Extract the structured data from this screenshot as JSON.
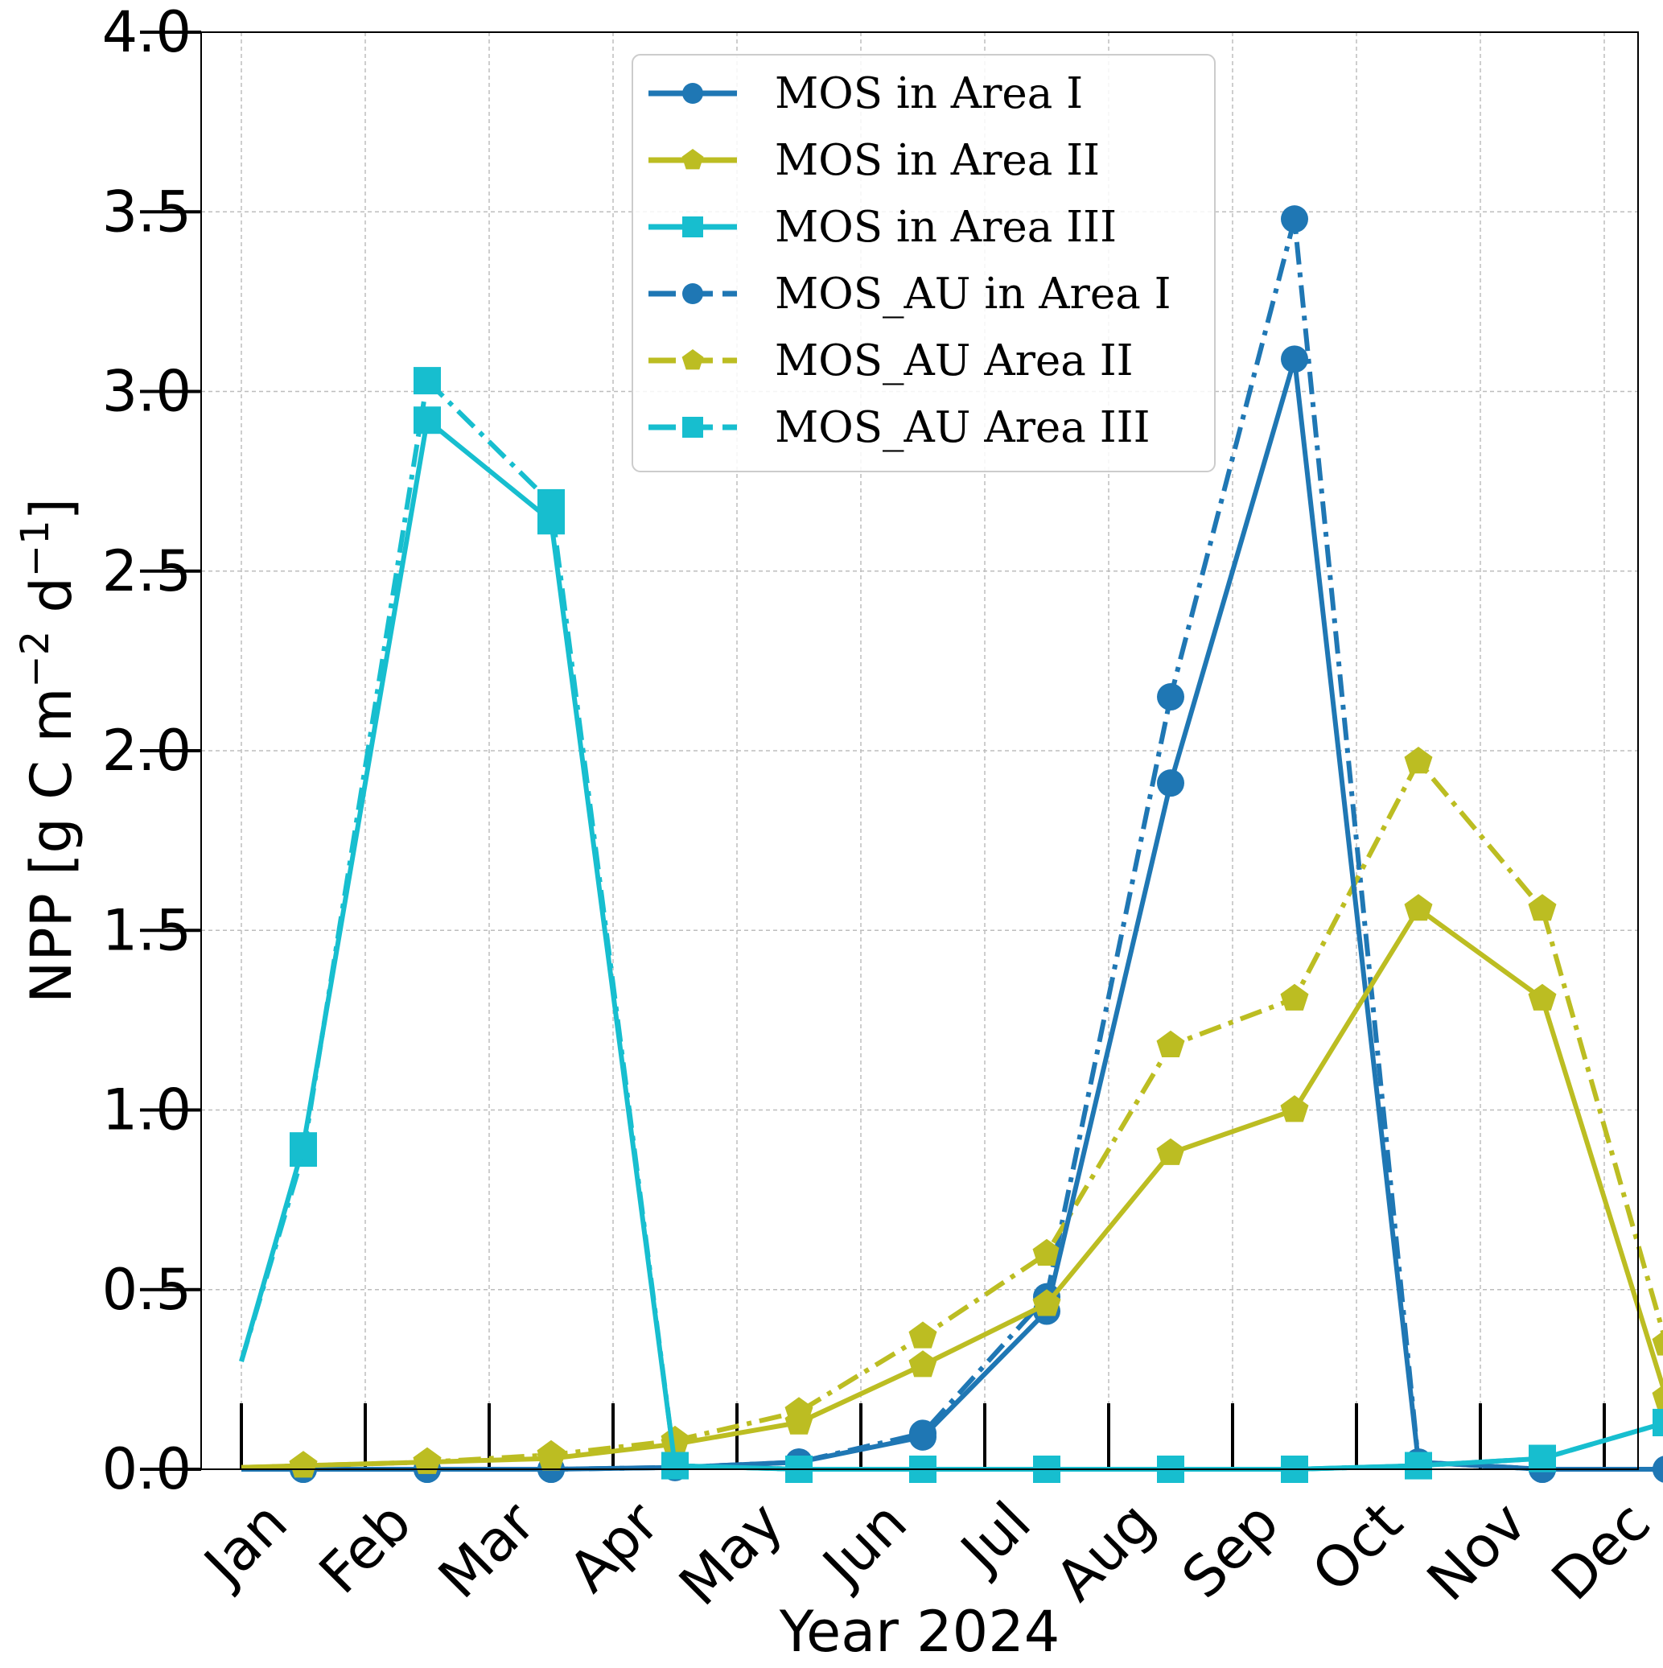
{
  "chart_data": {
    "type": "line",
    "xlabel": "Year 2024",
    "ylabel_main": "NPP [g C m",
    "ylabel_sup1": "−2",
    "ylabel_mid": " d",
    "ylabel_sup2": "−1",
    "ylabel_end": "]",
    "ylim": [
      0.0,
      4.0
    ],
    "yticks": [
      "0.0",
      "0.5",
      "1.0",
      "1.5",
      "2.0",
      "2.5",
      "3.0",
      "3.5",
      "4.0"
    ],
    "month_labels": [
      "Jan",
      "Feb",
      "Mar",
      "Apr",
      "May",
      "Jun",
      "Jul",
      "Aug",
      "Sep",
      "Oct",
      "Nov",
      "Dec"
    ],
    "grid": true,
    "legend_position": "top-center",
    "series": [
      {
        "name": "MOS in Area I",
        "color": "#1f77b4",
        "dash": "solid",
        "marker": "circle",
        "points": [
          [
            0.0,
            0.0
          ],
          [
            0.5,
            0.0
          ],
          [
            1.5,
            0.0
          ],
          [
            2.5,
            0.0
          ],
          [
            3.5,
            0.005
          ],
          [
            4.5,
            0.02
          ],
          [
            5.5,
            0.09
          ],
          [
            6.5,
            0.44
          ],
          [
            7.5,
            1.91
          ],
          [
            8.5,
            3.09
          ],
          [
            9.5,
            0.02
          ],
          [
            10.5,
            0.0
          ],
          [
            11.5,
            0.0
          ]
        ]
      },
      {
        "name": "MOS in Area II",
        "color": "#bcbd22",
        "dash": "solid",
        "marker": "pentagon",
        "points": [
          [
            0.0,
            0.005
          ],
          [
            0.5,
            0.01
          ],
          [
            1.5,
            0.02
          ],
          [
            2.5,
            0.03
          ],
          [
            3.5,
            0.07
          ],
          [
            4.5,
            0.13
          ],
          [
            5.5,
            0.29
          ],
          [
            6.5,
            0.46
          ],
          [
            7.5,
            0.88
          ],
          [
            8.5,
            1.0
          ],
          [
            9.5,
            1.56
          ],
          [
            10.5,
            1.31
          ],
          [
            11.5,
            0.2
          ]
        ]
      },
      {
        "name": "MOS in Area III",
        "color": "#17becf",
        "dash": "solid",
        "marker": "square",
        "points": [
          [
            0.0,
            0.3
          ],
          [
            0.5,
            0.9
          ],
          [
            1.5,
            2.92
          ],
          [
            2.5,
            2.64
          ],
          [
            3.5,
            0.01
          ],
          [
            4.5,
            0.0
          ],
          [
            5.5,
            0.0
          ],
          [
            6.5,
            0.0
          ],
          [
            7.5,
            0.0
          ],
          [
            8.5,
            0.0
          ],
          [
            9.5,
            0.01
          ],
          [
            10.5,
            0.03
          ],
          [
            11.5,
            0.13
          ]
        ]
      },
      {
        "name": "MOS_AU in Area I",
        "color": "#1f77b4",
        "dash": "dashdot",
        "marker": "circle",
        "points": [
          [
            0.0,
            0.0
          ],
          [
            0.5,
            0.0
          ],
          [
            1.5,
            0.0
          ],
          [
            2.5,
            0.0
          ],
          [
            3.5,
            0.005
          ],
          [
            4.5,
            0.02
          ],
          [
            5.5,
            0.1
          ],
          [
            6.5,
            0.48
          ],
          [
            7.5,
            2.15
          ],
          [
            8.5,
            3.48
          ],
          [
            9.5,
            0.02
          ],
          [
            10.5,
            0.0
          ],
          [
            11.5,
            0.0
          ]
        ]
      },
      {
        "name": "MOS_AU Area II",
        "color": "#bcbd22",
        "dash": "dashdot",
        "marker": "pentagon",
        "points": [
          [
            0.0,
            0.005
          ],
          [
            0.5,
            0.01
          ],
          [
            1.5,
            0.02
          ],
          [
            2.5,
            0.04
          ],
          [
            3.5,
            0.08
          ],
          [
            4.5,
            0.16
          ],
          [
            5.5,
            0.37
          ],
          [
            6.5,
            0.6
          ],
          [
            7.5,
            1.18
          ],
          [
            8.5,
            1.31
          ],
          [
            9.5,
            1.97
          ],
          [
            10.5,
            1.56
          ],
          [
            11.5,
            0.35
          ]
        ]
      },
      {
        "name": "MOS_AU Area III",
        "color": "#17becf",
        "dash": "dashdot",
        "marker": "square",
        "points": [
          [
            0.0,
            0.3
          ],
          [
            0.5,
            0.88
          ],
          [
            1.5,
            3.03
          ],
          [
            2.5,
            2.69
          ],
          [
            3.5,
            0.01
          ],
          [
            4.5,
            0.0
          ],
          [
            5.5,
            0.0
          ],
          [
            6.5,
            0.0
          ],
          [
            7.5,
            0.0
          ],
          [
            8.5,
            0.0
          ],
          [
            9.5,
            0.01
          ],
          [
            10.5,
            0.03
          ],
          [
            11.5,
            0.13
          ]
        ]
      }
    ]
  }
}
